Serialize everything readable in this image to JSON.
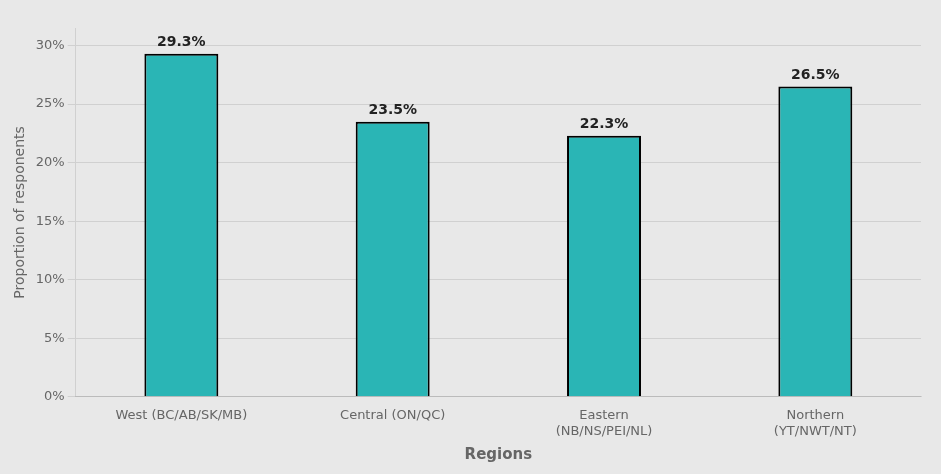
{
  "chart_data": {
    "type": "bar",
    "categories": [
      "West (BC/AB/SK/MB)",
      "Central (ON/QC)",
      "Eastern\n(NB/NS/PEI/NL)",
      "Northern\n(YT/NWT/NT)"
    ],
    "values": [
      29.3,
      23.5,
      22.3,
      26.5
    ],
    "value_labels": [
      "29.3%",
      "23.5%",
      "22.3%",
      "26.5%"
    ],
    "data_labels": true,
    "color": "#2AB5B5",
    "xlabel": "Regions",
    "ylabel": "Proportion of responents",
    "ylim": [
      0,
      31.5
    ],
    "yticks": [
      {
        "value": 0,
        "label": "0%"
      },
      {
        "value": 5,
        "label": "5%"
      },
      {
        "value": 10,
        "label": "10%"
      },
      {
        "value": 15,
        "label": "15%"
      },
      {
        "value": 20,
        "label": "20%"
      },
      {
        "value": 25,
        "label": "25%"
      },
      {
        "value": 30,
        "label": "30%"
      }
    ],
    "grid": true
  }
}
